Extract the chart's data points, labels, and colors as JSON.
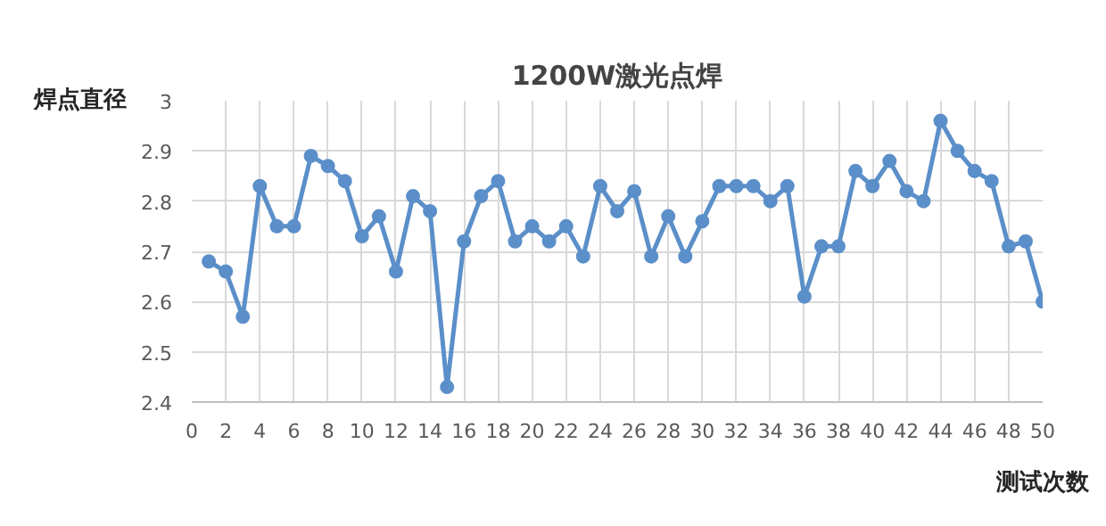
{
  "chart_data": {
    "type": "line",
    "title": "1200W激光点焊",
    "xlabel": "测试次数",
    "ylabel": "焊点直径",
    "x": [
      1,
      2,
      3,
      4,
      5,
      6,
      7,
      8,
      9,
      10,
      11,
      12,
      13,
      14,
      15,
      16,
      17,
      18,
      19,
      20,
      21,
      22,
      23,
      24,
      25,
      26,
      27,
      28,
      29,
      30,
      31,
      32,
      33,
      34,
      35,
      36,
      37,
      38,
      39,
      40,
      41,
      42,
      43,
      44,
      45,
      46,
      47,
      48,
      49,
      50
    ],
    "series": [
      {
        "color": "#5b8fc9",
        "values": [
          2.68,
          2.66,
          2.57,
          2.83,
          2.75,
          2.75,
          2.89,
          2.87,
          2.84,
          2.73,
          2.77,
          2.66,
          2.81,
          2.78,
          2.43,
          2.72,
          2.81,
          2.84,
          2.72,
          2.75,
          2.72,
          2.75,
          2.69,
          2.83,
          2.78,
          2.82,
          2.69,
          2.77,
          2.69,
          2.76,
          2.83,
          2.83,
          2.83,
          2.8,
          2.83,
          2.61,
          2.71,
          2.71,
          2.86,
          2.83,
          2.88,
          2.82,
          2.8,
          2.96,
          2.9,
          2.86,
          2.84,
          2.71,
          2.72,
          2.6
        ]
      }
    ],
    "xlim": [
      0,
      50
    ],
    "xticks": [
      0,
      2,
      4,
      6,
      8,
      10,
      12,
      14,
      16,
      18,
      20,
      22,
      24,
      26,
      28,
      30,
      32,
      34,
      36,
      38,
      40,
      42,
      44,
      46,
      48,
      50
    ],
    "ylim": [
      2.4,
      3
    ],
    "yticks": [
      2.4,
      2.5,
      2.6,
      2.7,
      2.8,
      2.9,
      3
    ],
    "grid": true,
    "marker": "circle",
    "line_style": "solid"
  }
}
